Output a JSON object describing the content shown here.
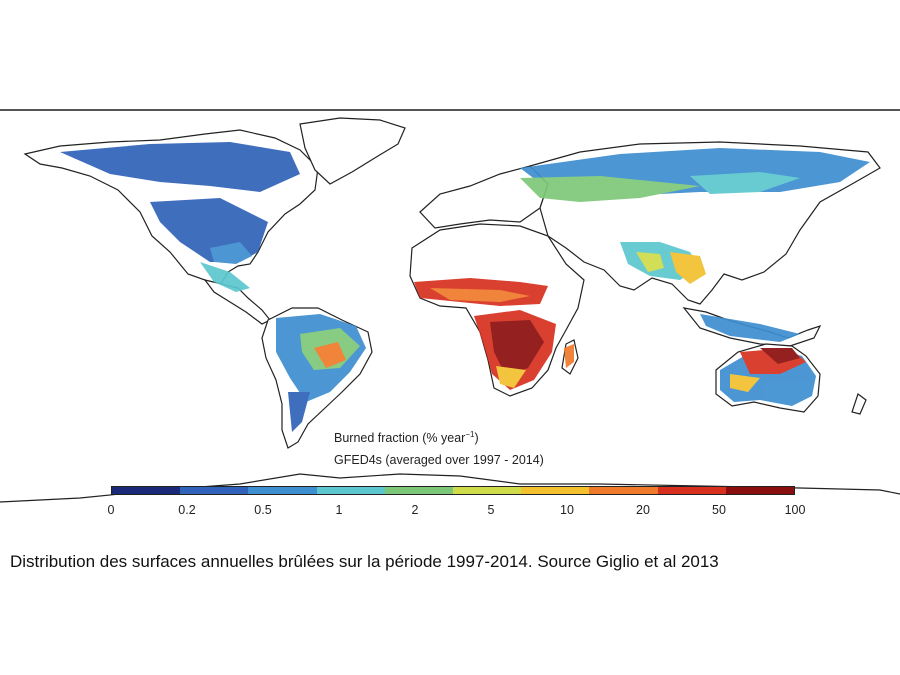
{
  "map": {
    "legend_title": "Burned fraction (% year",
    "legend_title_exponent": "−1",
    "legend_title_close": ")",
    "dataset_note": "GFED4s (averaged over 1997 - 2014)",
    "colorbar_ticks": [
      "0",
      "0.2",
      "0.5",
      "1",
      "2",
      "5",
      "10",
      "20",
      "50",
      "100"
    ],
    "colorbar_colors": [
      "#1b2a78",
      "#2f62b8",
      "#3d8fd0",
      "#5cc7cf",
      "#7dc878",
      "#cfdc4a",
      "#f3c02e",
      "#ef7a2a",
      "#d7301f",
      "#8b0e0e"
    ]
  },
  "caption": "Distribution des surfaces annuelles brûlées sur la période 1997-2014. Source Giglio et al 2013"
}
